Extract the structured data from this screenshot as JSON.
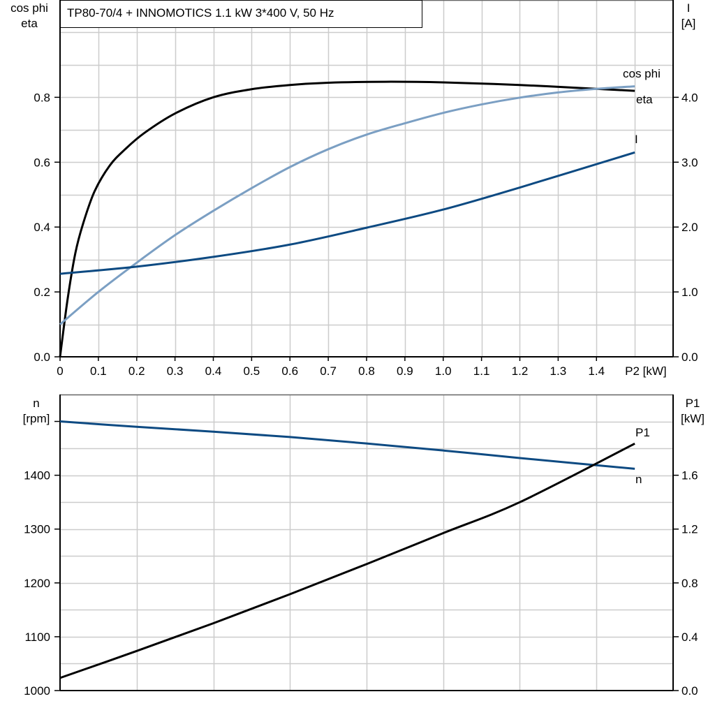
{
  "title": "TP80-70/4 + INNOMOTICS   1.1 kW   3*400 V, 50 Hz",
  "colors": {
    "eta": "#000000",
    "cos_phi": "#7b9fc3",
    "I": "#0d4a82",
    "n": "#0d4a82",
    "P1": "#000000",
    "grid": "#cccccc"
  },
  "chart_data": [
    {
      "type": "line",
      "xlabel": "P2 [kW]",
      "xlim": [
        0,
        1.6
      ],
      "x_ticks": [
        "0",
        "0.1",
        "0.2",
        "0.3",
        "0.4",
        "0.5",
        "0.6",
        "0.7",
        "0.8",
        "0.9",
        "1.0",
        "1.1",
        "1.2",
        "1.3",
        "1.4"
      ],
      "ylabel_left": [
        "cos phi",
        "eta"
      ],
      "ylim_left": [
        0,
        1.1
      ],
      "y_ticks_left": [
        "0.0",
        "0.2",
        "0.4",
        "0.6",
        "0.8"
      ],
      "ylabel_right": [
        "I",
        "[A]"
      ],
      "ylim_right": [
        0,
        5.5
      ],
      "y_ticks_right": [
        "0.0",
        "1.0",
        "2.0",
        "3.0",
        "4.0"
      ],
      "grid": true,
      "series": [
        {
          "name": "eta",
          "axis": "left",
          "color": "#000000",
          "x": [
            0,
            0.02,
            0.04,
            0.06,
            0.09,
            0.13,
            0.17,
            0.22,
            0.3,
            0.4,
            0.5,
            0.6,
            0.7,
            0.85,
            1.0,
            1.2,
            1.4,
            1.5
          ],
          "y": [
            0,
            0.18,
            0.32,
            0.41,
            0.51,
            0.59,
            0.64,
            0.69,
            0.75,
            0.8,
            0.825,
            0.838,
            0.845,
            0.848,
            0.846,
            0.838,
            0.826,
            0.82
          ]
        },
        {
          "name": "cos phi",
          "axis": "left",
          "color": "#7b9fc3",
          "x": [
            0,
            0.1,
            0.2,
            0.3,
            0.4,
            0.5,
            0.6,
            0.7,
            0.8,
            0.9,
            1.0,
            1.1,
            1.2,
            1.3,
            1.4,
            1.5
          ],
          "y": [
            0.1,
            0.2,
            0.29,
            0.375,
            0.45,
            0.52,
            0.585,
            0.64,
            0.685,
            0.72,
            0.752,
            0.778,
            0.799,
            0.815,
            0.826,
            0.834
          ]
        },
        {
          "name": "I",
          "axis": "right",
          "color": "#0d4a82",
          "x": [
            0,
            0.2,
            0.4,
            0.6,
            0.8,
            1.0,
            1.2,
            1.5
          ],
          "y": [
            1.28,
            1.39,
            1.54,
            1.73,
            1.99,
            2.27,
            2.61,
            3.15
          ]
        }
      ]
    },
    {
      "type": "line",
      "xlim": [
        0,
        1.6
      ],
      "ylabel_left": [
        "n",
        "[rpm]"
      ],
      "ylim_left": [
        1000,
        1550
      ],
      "y_ticks_left": [
        "1000",
        "1100",
        "1200",
        "1300",
        "1400"
      ],
      "ylabel_right": [
        "P1",
        "[kW]"
      ],
      "ylim_right": [
        0,
        2.2
      ],
      "y_ticks_right": [
        "0.0",
        "0.4",
        "0.8",
        "1.2",
        "1.6"
      ],
      "grid": true,
      "series": [
        {
          "name": "n",
          "axis": "left",
          "color": "#0d4a82",
          "x": [
            0,
            0.2,
            0.4,
            0.6,
            0.8,
            1.0,
            1.2,
            1.5
          ],
          "y": [
            1500,
            1490,
            1481,
            1471,
            1459,
            1446,
            1432,
            1412
          ]
        },
        {
          "name": "P1",
          "axis": "right",
          "color": "#000000",
          "x": [
            0,
            0.2,
            0.4,
            0.6,
            0.8,
            1.0,
            1.2,
            1.5
          ],
          "y": [
            0.094,
            0.294,
            0.5,
            0.716,
            0.94,
            1.17,
            1.4,
            1.835
          ]
        }
      ]
    }
  ]
}
